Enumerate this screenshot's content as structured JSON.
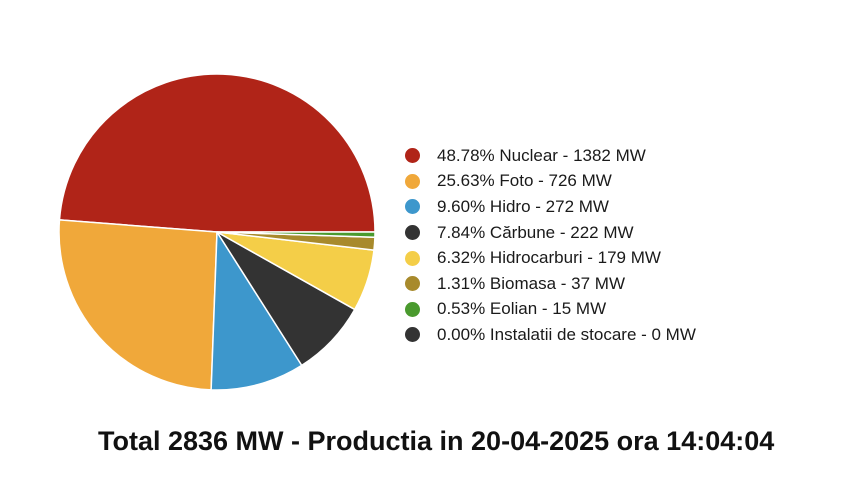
{
  "chart_data": {
    "type": "pie",
    "categories": [
      "Nuclear",
      "Foto",
      "Hidro",
      "Cărbune",
      "Hidrocarburi",
      "Biomasa",
      "Eolian",
      "Instalatii de stocare"
    ],
    "values": [
      1382,
      726,
      272,
      222,
      179,
      37,
      15,
      0
    ],
    "percentages": [
      48.78,
      25.63,
      9.6,
      7.84,
      6.32,
      1.31,
      0.53,
      0.0
    ],
    "unit": "MW",
    "colors": [
      "#b02418",
      "#f0a83a",
      "#3d97cc",
      "#333333",
      "#f4ce48",
      "#a88a2c",
      "#4a9a2e",
      "#333333"
    ],
    "legend_labels": [
      "48.78% Nuclear - 1382 MW",
      "25.63% Foto - 726 MW",
      "9.60% Hidro - 272 MW",
      "7.84% Cărbune - 222 MW",
      "6.32% Hidrocarburi - 179 MW",
      "1.31% Biomasa - 37 MW",
      "0.53% Eolian - 15 MW",
      "0.00% Instalatii de stocare - 0 MW"
    ],
    "legend_position": "right",
    "title": "Total 2836 MW - Productia in 20-04-2025 ora 14:04:04"
  }
}
